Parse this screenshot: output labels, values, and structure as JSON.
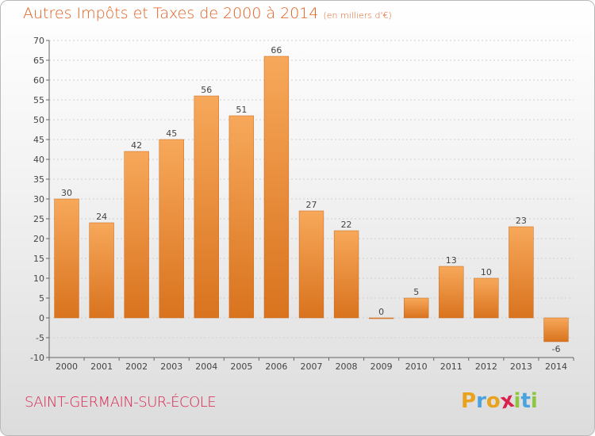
{
  "title": "Autres Impôts et Taxes de 2000 à 2014",
  "subtitle": "(en milliers d'€)",
  "commune": "SAINT-GERMAIN-SUR-ÉCOLE",
  "logo": {
    "letters": [
      "P",
      "r",
      "o",
      "x",
      "i",
      "t",
      "i"
    ],
    "colors": [
      "#e8a21e",
      "#4aa3df",
      "#e8a21e",
      "#d9234e",
      "#8dc63f",
      "#4aa3df",
      "#8dc63f"
    ]
  },
  "colors": {
    "bar_light": "#f7a85a",
    "bar_dark": "#d9731e",
    "title": "#e05f1f",
    "commune": "#d9234e"
  },
  "chart_data": {
    "type": "bar",
    "title": "Autres Impôts et Taxes de 2000 à 2014",
    "subtitle": "(en milliers d'€)",
    "categories": [
      "2000",
      "2001",
      "2002",
      "2003",
      "2004",
      "2005",
      "2006",
      "2007",
      "2008",
      "2009",
      "2010",
      "2011",
      "2012",
      "2013",
      "2014"
    ],
    "values": [
      30,
      24,
      42,
      45,
      56,
      51,
      66,
      27,
      22,
      0,
      5,
      13,
      10,
      23,
      -6
    ],
    "ylim": [
      -10,
      70
    ],
    "yticks": [
      -10,
      -5,
      0,
      5,
      10,
      15,
      20,
      25,
      30,
      35,
      40,
      45,
      50,
      55,
      60,
      65,
      70
    ],
    "grid": true,
    "legend": "none"
  }
}
